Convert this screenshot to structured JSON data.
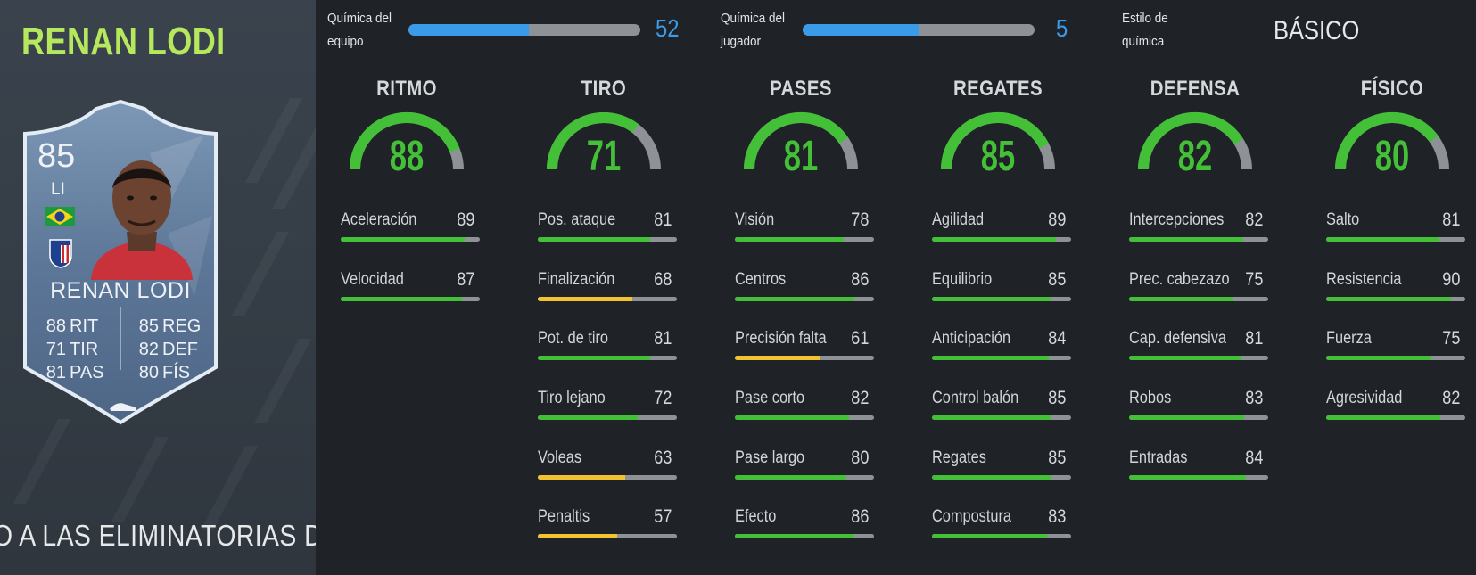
{
  "player": {
    "name": "RENAN LODI",
    "card": {
      "rating": "85",
      "position": "LI",
      "name": "RENAN LODI",
      "stats": [
        {
          "value": "88",
          "label": "RIT"
        },
        {
          "value": "71",
          "label": "TIR"
        },
        {
          "value": "81",
          "label": "PAS"
        },
        {
          "value": "85",
          "label": "REG"
        },
        {
          "value": "82",
          "label": "DEF"
        },
        {
          "value": "80",
          "label": "FÍS"
        }
      ]
    },
    "promo_text": "O A LAS ELIMINATORIAS DE"
  },
  "chemistry": {
    "team": {
      "label_line1": "Química del",
      "label_line2": "equipo",
      "value": "52",
      "fill": 0.52
    },
    "player": {
      "label_line1": "Química del",
      "label_line2": "jugador",
      "value": "5",
      "fill": 0.5
    },
    "style": {
      "label_line1": "Estilo de",
      "label_line2": "química",
      "value": "BÁSICO"
    }
  },
  "colors": {
    "green": "#43c037",
    "yellow": "#f2c230",
    "blue": "#3a9be8",
    "grey": "#8e9297",
    "title_green": "#b6e85d"
  },
  "attributes": [
    {
      "title": "RITMO",
      "value": 88,
      "subs": [
        {
          "label": "Aceleración",
          "value": 89
        },
        {
          "label": "Velocidad",
          "value": 87
        }
      ]
    },
    {
      "title": "TIRO",
      "value": 71,
      "subs": [
        {
          "label": "Pos. ataque",
          "value": 81
        },
        {
          "label": "Finalización",
          "value": 68
        },
        {
          "label": "Pot. de tiro",
          "value": 81
        },
        {
          "label": "Tiro lejano",
          "value": 72
        },
        {
          "label": "Voleas",
          "value": 63
        },
        {
          "label": "Penaltis",
          "value": 57
        }
      ]
    },
    {
      "title": "PASES",
      "value": 81,
      "subs": [
        {
          "label": "Visión",
          "value": 78
        },
        {
          "label": "Centros",
          "value": 86
        },
        {
          "label": "Precisión falta",
          "value": 61
        },
        {
          "label": "Pase corto",
          "value": 82
        },
        {
          "label": "Pase largo",
          "value": 80
        },
        {
          "label": "Efecto",
          "value": 86
        }
      ]
    },
    {
      "title": "REGATES",
      "value": 85,
      "subs": [
        {
          "label": "Agilidad",
          "value": 89
        },
        {
          "label": "Equilibrio",
          "value": 85
        },
        {
          "label": "Anticipación",
          "value": 84
        },
        {
          "label": "Control balón",
          "value": 85
        },
        {
          "label": "Regates",
          "value": 85
        },
        {
          "label": "Compostura",
          "value": 83
        }
      ]
    },
    {
      "title": "DEFENSA",
      "value": 82,
      "subs": [
        {
          "label": "Intercepciones",
          "value": 82
        },
        {
          "label": "Prec. cabezazo",
          "value": 75
        },
        {
          "label": "Cap. defensiva",
          "value": 81
        },
        {
          "label": "Robos",
          "value": 83
        },
        {
          "label": "Entradas",
          "value": 84
        }
      ]
    },
    {
      "title": "FÍSICO",
      "value": 80,
      "subs": [
        {
          "label": "Salto",
          "value": 81
        },
        {
          "label": "Resistencia",
          "value": 90
        },
        {
          "label": "Fuerza",
          "value": 75
        },
        {
          "label": "Agresividad",
          "value": 82
        }
      ]
    }
  ]
}
